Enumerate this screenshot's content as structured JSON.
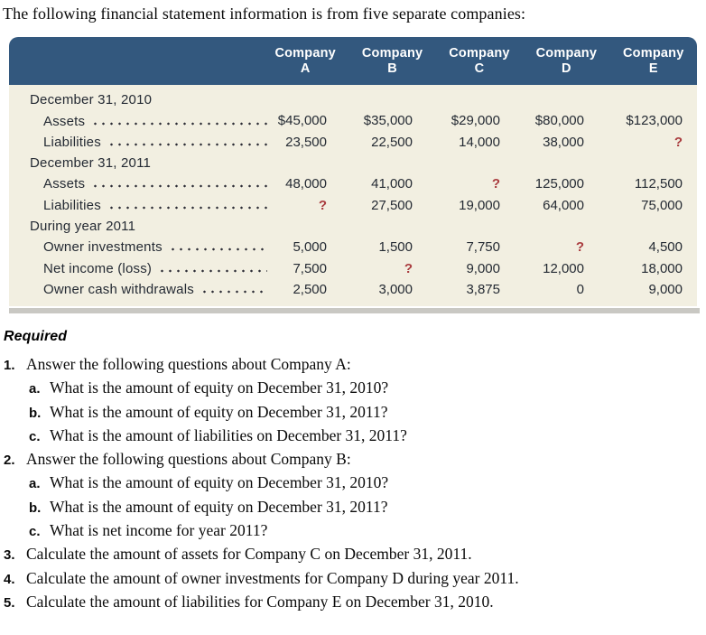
{
  "intro_text": "The following financial statement information is from five separate companies:",
  "colors": {
    "header_blue": "#33587e",
    "body_cream": "#f2efe1",
    "table_text": "#242a33",
    "unknown_red": "#a93b3e",
    "shadow_gray": "#c9c8c3"
  },
  "table": {
    "columns": [
      {
        "top": "Company",
        "bottom": "A"
      },
      {
        "top": "Company",
        "bottom": "B"
      },
      {
        "top": "Company",
        "bottom": "C"
      },
      {
        "top": "Company",
        "bottom": "D"
      },
      {
        "top": "Company",
        "bottom": "E"
      }
    ],
    "sections": [
      {
        "header": "December 31, 2010",
        "rows": [
          {
            "label": "Assets",
            "values": [
              "$45,000",
              "$35,000",
              "$29,000",
              "$80,000",
              "$123,000"
            ]
          },
          {
            "label": "Liabilities",
            "values": [
              "23,500",
              "22,500",
              "14,000",
              "38,000",
              "?"
            ]
          }
        ]
      },
      {
        "header": "December 31, 2011",
        "rows": [
          {
            "label": "Assets",
            "values": [
              "48,000",
              "41,000",
              "?",
              "125,000",
              "112,500"
            ]
          },
          {
            "label": "Liabilities",
            "values": [
              "?",
              "27,500",
              "19,000",
              "64,000",
              "75,000"
            ]
          }
        ]
      },
      {
        "header": "During year 2011",
        "rows": [
          {
            "label": "Owner investments",
            "values": [
              "5,000",
              "1,500",
              "7,750",
              "?",
              "4,500"
            ]
          },
          {
            "label": "Net income (loss)",
            "values": [
              "7,500",
              "?",
              "9,000",
              "12,000",
              "18,000"
            ]
          },
          {
            "label": "Owner cash withdrawals",
            "values": [
              "2,500",
              "3,000",
              "3,875",
              "0",
              "9,000"
            ]
          }
        ]
      }
    ],
    "unknown_marker": "?"
  },
  "required": {
    "heading": "Required",
    "items": [
      {
        "number": "1.",
        "text": "Answer the following questions about Company A:",
        "subitems": [
          {
            "letter": "a.",
            "text": "What is the amount of equity on December 31, 2010?"
          },
          {
            "letter": "b.",
            "text": "What is the amount of equity on December 31, 2011?"
          },
          {
            "letter": "c.",
            "text": "What is the amount of liabilities on December 31, 2011?"
          }
        ]
      },
      {
        "number": "2.",
        "text": "Answer the following questions about Company B:",
        "subitems": [
          {
            "letter": "a.",
            "text": "What is the amount of equity on December 31, 2010?"
          },
          {
            "letter": "b.",
            "text": "What is the amount of equity on December 31, 2011?"
          },
          {
            "letter": "c.",
            "text": "What is net income for year 2011?"
          }
        ]
      },
      {
        "number": "3.",
        "text": "Calculate the amount of assets for Company C on December 31, 2011.",
        "subitems": []
      },
      {
        "number": "4.",
        "text": "Calculate the amount of owner investments for Company D during year 2011.",
        "subitems": []
      },
      {
        "number": "5.",
        "text": "Calculate the amount of liabilities for Company E on December 31, 2010.",
        "subitems": []
      }
    ]
  }
}
